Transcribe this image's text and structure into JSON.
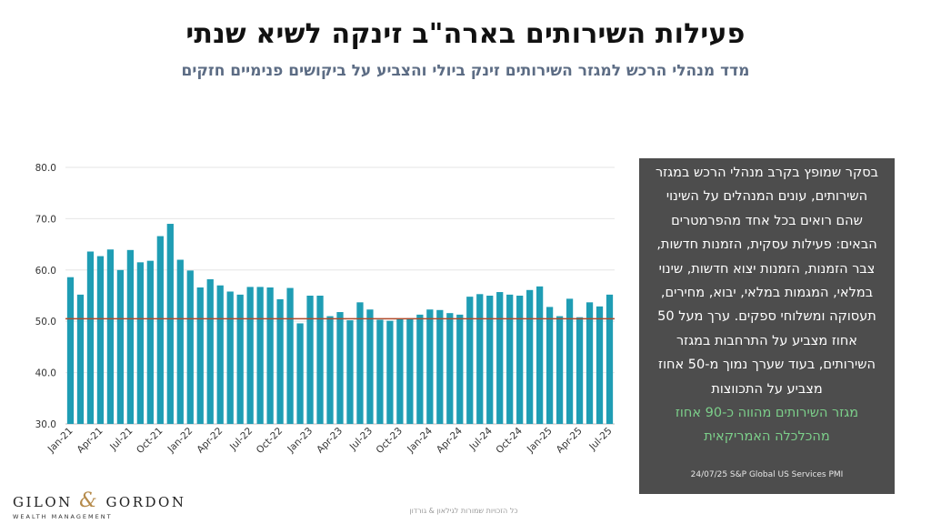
{
  "header": {
    "title": "פעילות השירותים בארה\"ב זינקה לשיא שנתי",
    "subtitle": "מדד מנהלי הרכש למגזר השירותים זינק ביולי והצביע על ביקושים פנימיים חזקים"
  },
  "textbox": {
    "lines": [
      "בסקר שמופץ בקרב מנהלי הרכש במגזר",
      "השירותים, עונים המנהלים על השינוי",
      "שהם רואים בכל אחד מהפרמטרים",
      "הבאים: פעילות עסקית, הזמנות חדשות,",
      "צבר הזמנות, הזמנות יצוא חדשות, שינוי",
      "במלאי, המגמות במלאי, יבוא, מחירים,",
      "תעסוקה ומשלוחי ספקים. ערך מעל 50",
      "אחוז מצביע על התרחבות במגזר",
      "השירותים, בעוד שערך נמוך מ-50 אחוז",
      "מצביע על התכווצות"
    ],
    "highlight_lines": [
      "מגזר השירותים מהווה כ-90 אחוז",
      "מהכלכלה האמריקאית"
    ],
    "source": "24/07/25  S&P Global US Services PMI",
    "highlight_color": "#7ccf8a"
  },
  "logo": {
    "name_left": "GILON",
    "amp": "&",
    "name_right": "GORDON",
    "tagline": "WEALTH MANAGEMENT"
  },
  "footer": {
    "text": "כל הזכויות שמורות לגילאון & גורדון"
  },
  "chart_data": {
    "type": "bar",
    "bar_color": "#1f9db4",
    "reference_line": {
      "y": 50.5,
      "color": "#b04a2a"
    },
    "ylim": [
      30,
      80
    ],
    "yticks": [
      "30.0",
      "40.0",
      "50.0",
      "60.0",
      "70.0",
      "80.0"
    ],
    "grid": true,
    "categories": [
      "Jan-21",
      "Feb-21",
      "Mar-21",
      "Apr-21",
      "May-21",
      "Jun-21",
      "Jul-21",
      "Aug-21",
      "Sep-21",
      "Oct-21",
      "Nov-21",
      "Dec-21",
      "Jan-22",
      "Feb-22",
      "Mar-22",
      "Apr-22",
      "May-22",
      "Jun-22",
      "Jul-22",
      "Aug-22",
      "Sep-22",
      "Oct-22",
      "Nov-22",
      "Dec-22",
      "Jan-23",
      "Feb-23",
      "Mar-23",
      "Apr-23",
      "May-23",
      "Jun-23",
      "Jul-23",
      "Aug-23",
      "Sep-23",
      "Oct-23",
      "Nov-23",
      "Dec-23",
      "Jan-24",
      "Feb-24",
      "Mar-24",
      "Apr-24",
      "May-24",
      "Jun-24",
      "Jul-24",
      "Aug-24",
      "Sep-24",
      "Oct-24",
      "Nov-24",
      "Dec-24",
      "Jan-25",
      "Feb-25",
      "Mar-25",
      "Apr-25",
      "May-25",
      "Jun-25",
      "Jul-25"
    ],
    "xtick_labels": [
      "Jan-21",
      "Apr-21",
      "Jul-21",
      "Oct-21",
      "Jan-22",
      "Apr-22",
      "Jul-22",
      "Oct-22",
      "Jan-23",
      "Apr-23",
      "Jul-23",
      "Oct-23",
      "Jan-24",
      "Apr-24",
      "Jul-24",
      "Oct-24",
      "Jan-25",
      "Apr-25",
      "Jul-25"
    ],
    "values": [
      58.6,
      55.2,
      63.6,
      62.7,
      64.0,
      60.0,
      63.9,
      61.5,
      61.8,
      66.6,
      69.0,
      62.0,
      59.9,
      56.6,
      58.2,
      57.0,
      55.8,
      55.2,
      56.7,
      56.7,
      56.6,
      54.3,
      56.5,
      49.6,
      55.0,
      55.0,
      51.0,
      51.8,
      50.2,
      53.7,
      52.3,
      50.3,
      50.1,
      50.4,
      50.6,
      51.3,
      52.3,
      52.2,
      51.6,
      51.3,
      54.8,
      55.3,
      55.0,
      55.7,
      55.2,
      55.0,
      56.1,
      56.8,
      52.8,
      51.0,
      54.4,
      50.8,
      53.7,
      52.9,
      55.2
    ]
  }
}
